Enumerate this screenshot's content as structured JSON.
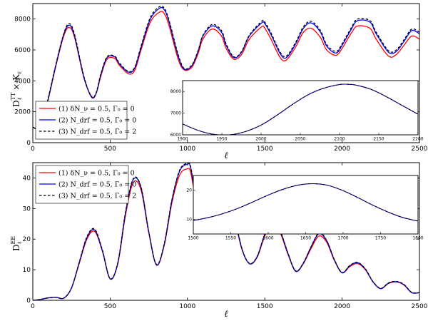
{
  "chart_data": [
    {
      "id": "top",
      "type": "line",
      "ylabel_main": "D",
      "ylabel_sub": "ℓ",
      "ylabel_sup": "TT",
      "ylabel_tail": "× K",
      "ylabel_tail_sub": "ℓ",
      "xlabel": "ℓ",
      "xlim": [
        0,
        2500
      ],
      "ylim": [
        0,
        9000
      ],
      "xticks": [
        "0",
        "500",
        "1000",
        "1500",
        "2000",
        "2500"
      ],
      "yticks": [
        "0",
        "2000",
        "4000",
        "6000",
        "8000"
      ],
      "legend_position": "lower-left",
      "series": [
        {
          "name": "(1) δN_ν = 0.5, Γ₀ = 0",
          "color": "#ff0000",
          "dash": false,
          "x": [
            2,
            30,
            60,
            100,
            150,
            200,
            235,
            270,
            330,
            380,
            410,
            440,
            480,
            530,
            560,
            620,
            660,
            700,
            760,
            820,
            850,
            880,
            940,
            980,
            1030,
            1070,
            1100,
            1160,
            1220,
            1250,
            1300,
            1350,
            1400,
            1480,
            1500,
            1540,
            1600,
            1640,
            1700,
            1750,
            1800,
            1860,
            1900,
            1960,
            2000,
            2060,
            2100,
            2180,
            2220,
            2300,
            2350,
            2400,
            2450,
            2500
          ],
          "y": [
            1000,
            900,
            1300,
            2800,
            5000,
            6900,
            7450,
            6800,
            4200,
            3000,
            3200,
            4300,
            5400,
            5450,
            5000,
            4450,
            4700,
            6000,
            7800,
            8450,
            8350,
            7600,
            5400,
            4700,
            4900,
            5800,
            6700,
            7350,
            6900,
            6100,
            5400,
            5700,
            6700,
            7500,
            7400,
            6700,
            5500,
            5350,
            6200,
            7150,
            7400,
            6800,
            6000,
            5650,
            6100,
            7100,
            7550,
            7400,
            6700,
            5600,
            5700,
            6300,
            6900,
            6700
          ]
        },
        {
          "name": "(2) N_drf = 0.5, Γ₀ = 0",
          "color": "#0000ff",
          "dash": false,
          "x": [
            2,
            30,
            60,
            100,
            150,
            200,
            235,
            270,
            330,
            380,
            410,
            440,
            480,
            530,
            560,
            620,
            660,
            700,
            760,
            820,
            850,
            880,
            940,
            980,
            1030,
            1070,
            1100,
            1160,
            1220,
            1250,
            1300,
            1350,
            1400,
            1480,
            1500,
            1540,
            1600,
            1640,
            1700,
            1750,
            1800,
            1860,
            1900,
            1960,
            2000,
            2060,
            2100,
            2180,
            2220,
            2300,
            2350,
            2400,
            2450,
            2500
          ],
          "y": [
            1000,
            900,
            1300,
            2850,
            5050,
            7000,
            7600,
            6900,
            4250,
            2950,
            3200,
            4400,
            5500,
            5550,
            5100,
            4550,
            4850,
            6150,
            8000,
            8700,
            8600,
            7850,
            5600,
            4750,
            5000,
            5950,
            6900,
            7550,
            7150,
            6300,
            5500,
            5850,
            6900,
            7750,
            7700,
            7000,
            5750,
            5500,
            6400,
            7400,
            7750,
            7150,
            6250,
            5800,
            6300,
            7350,
            7900,
            7800,
            7050,
            5850,
            5900,
            6550,
            7250,
            7050
          ]
        },
        {
          "name": "(3) N_drf = 0.5, Γ₀ = 2",
          "color": "#000000",
          "dash": true,
          "x": [
            2,
            30,
            60,
            100,
            150,
            200,
            235,
            270,
            330,
            380,
            410,
            440,
            480,
            530,
            560,
            620,
            660,
            700,
            760,
            820,
            850,
            880,
            940,
            980,
            1030,
            1070,
            1100,
            1160,
            1220,
            1250,
            1300,
            1350,
            1400,
            1480,
            1500,
            1540,
            1600,
            1640,
            1700,
            1750,
            1800,
            1860,
            1900,
            1960,
            2000,
            2060,
            2100,
            2180,
            2220,
            2300,
            2350,
            2400,
            2450,
            2500
          ],
          "y": [
            1000,
            900,
            1300,
            2900,
            5100,
            7050,
            7700,
            7000,
            4300,
            2950,
            3250,
            4450,
            5550,
            5600,
            5150,
            4600,
            4900,
            6250,
            8100,
            8800,
            8700,
            7950,
            5700,
            4800,
            5050,
            6000,
            6950,
            7650,
            7250,
            6400,
            5550,
            5900,
            6950,
            7850,
            7800,
            7100,
            5850,
            5600,
            6500,
            7500,
            7850,
            7250,
            6350,
            5900,
            6400,
            7450,
            8000,
            7900,
            7150,
            5950,
            6000,
            6650,
            7350,
            7150
          ]
        }
      ],
      "inset": {
        "xlim": [
          1900,
          2200
        ],
        "ylim": [
          6000,
          8500
        ],
        "xticks": [
          "1900",
          "1950",
          "2000",
          "2050",
          "2100",
          "2150",
          "2200"
        ],
        "yticks": [
          "6000",
          "7000",
          "8000"
        ],
        "series": [
          {
            "color": "#ff0000",
            "dash": false,
            "x": [
              1900,
              1920,
              1940,
              1960,
              1980,
              2000,
              2020,
              2040,
              2060,
              2080,
              2100,
              2110,
              2120,
              2140,
              2160,
              2180,
              2200
            ],
            "y": [
              6500,
              6200,
              6020,
              6000,
              6150,
              6450,
              6900,
              7400,
              7850,
              8150,
              8320,
              8330,
              8300,
              8100,
              7750,
              7350,
              6950
            ]
          },
          {
            "color": "#0000ff",
            "dash": false,
            "x": [
              1900,
              1920,
              1940,
              1960,
              1980,
              2000,
              2020,
              2040,
              2060,
              2080,
              2100,
              2110,
              2120,
              2140,
              2160,
              2180,
              2200
            ],
            "y": [
              6500,
              6200,
              6020,
              6000,
              6150,
              6450,
              6900,
              7400,
              7850,
              8150,
              8320,
              8330,
              8300,
              8100,
              7750,
              7350,
              6950
            ]
          },
          {
            "color": "#000000",
            "dash": true,
            "x": [
              1900,
              1920,
              1940,
              1960,
              1980,
              2000,
              2020,
              2040,
              2060,
              2080,
              2100,
              2110,
              2120,
              2140,
              2160,
              2180,
              2200
            ],
            "y": [
              6500,
              6200,
              6020,
              6000,
              6150,
              6450,
              6900,
              7400,
              7850,
              8150,
              8320,
              8330,
              8300,
              8100,
              7750,
              7350,
              6950
            ]
          }
        ]
      }
    },
    {
      "id": "bottom",
      "type": "line",
      "ylabel_main": "D",
      "ylabel_sub": "ℓ",
      "ylabel_sup": "EE",
      "xlabel": "ℓ",
      "xlim": [
        0,
        2500
      ],
      "ylim": [
        0,
        45
      ],
      "xticks": [
        "0",
        "500",
        "1000",
        "1500",
        "2000",
        "2500"
      ],
      "yticks": [
        "0",
        "10",
        "20",
        "30",
        "40"
      ],
      "legend_position": "upper-left",
      "series": [
        {
          "name": "(1) δN_ν = 0.5, Γ₀ = 0",
          "color": "#ff0000",
          "dash": false,
          "x": [
            2,
            50,
            100,
            150,
            200,
            250,
            300,
            350,
            400,
            450,
            500,
            550,
            600,
            650,
            700,
            750,
            800,
            850,
            900,
            950,
            1000,
            1020,
            1050,
            1100,
            1150,
            1200,
            1250,
            1300,
            1350,
            1400,
            1450,
            1500,
            1550,
            1600,
            1650,
            1700,
            1750,
            1800,
            1850,
            1900,
            1950,
            2000,
            2050,
            2100,
            2150,
            2200,
            2250,
            2300,
            2350,
            2400,
            2450,
            2500
          ],
          "y": [
            0,
            0.3,
            0.8,
            1.0,
            0.7,
            4,
            12,
            20,
            22.5,
            16,
            7,
            12,
            28,
            38.5,
            36,
            22,
            11.5,
            18,
            32,
            41,
            43,
            42,
            34,
            24,
            26,
            33,
            38,
            28,
            17,
            12,
            14,
            21,
            25,
            22,
            15,
            9.5,
            12,
            17,
            21,
            19,
            13,
            9,
            11,
            12,
            10,
            6,
            3.8,
            5.5,
            6,
            5,
            2.5,
            2.5
          ]
        },
        {
          "name": "(2) N_drf = 0.5, Γ₀ = 0",
          "color": "#0000ff",
          "dash": false,
          "x": [
            2,
            50,
            100,
            150,
            200,
            250,
            300,
            350,
            400,
            450,
            500,
            550,
            600,
            650,
            700,
            750,
            800,
            850,
            900,
            950,
            1000,
            1020,
            1050,
            1100,
            1150,
            1200,
            1250,
            1300,
            1350,
            1400,
            1450,
            1500,
            1550,
            1600,
            1650,
            1700,
            1750,
            1800,
            1850,
            1900,
            1950,
            2000,
            2050,
            2100,
            2150,
            2200,
            2250,
            2300,
            2350,
            2400,
            2450,
            2500
          ],
          "y": [
            0,
            0.3,
            0.8,
            1.0,
            0.7,
            4,
            12.3,
            20.5,
            23,
            16.2,
            7,
            12.3,
            28.7,
            39.5,
            36.8,
            22.3,
            11.6,
            18.3,
            32.8,
            42.3,
            44.5,
            43.5,
            35,
            24.5,
            26.5,
            33.8,
            39,
            28.5,
            17.2,
            12,
            14.2,
            21.5,
            25.6,
            22.5,
            15.3,
            9.5,
            12.2,
            17.5,
            21.8,
            19.5,
            13.2,
            9,
            11.3,
            12.3,
            10.2,
            6,
            3.8,
            5.6,
            6.1,
            5.1,
            2.5,
            2.5
          ]
        },
        {
          "name": "(3) N_drf = 0.5, Γ₀ = 2",
          "color": "#000000",
          "dash": true,
          "x": [
            2,
            50,
            100,
            150,
            200,
            250,
            300,
            350,
            400,
            450,
            500,
            550,
            600,
            650,
            700,
            750,
            800,
            850,
            900,
            950,
            1000,
            1020,
            1050,
            1100,
            1150,
            1200,
            1250,
            1300,
            1350,
            1400,
            1450,
            1500,
            1550,
            1600,
            1650,
            1700,
            1750,
            1800,
            1850,
            1900,
            1950,
            2000,
            2050,
            2100,
            2150,
            2200,
            2250,
            2300,
            2350,
            2400,
            2450,
            2500
          ],
          "y": [
            0,
            0.3,
            0.8,
            1.0,
            0.7,
            4,
            12.4,
            20.8,
            23.3,
            16.4,
            7.1,
            12.4,
            29,
            39.8,
            37,
            22.4,
            11.7,
            18.5,
            33,
            42.6,
            44.8,
            43.8,
            35.2,
            24.6,
            26.6,
            34,
            39.2,
            28.6,
            17.3,
            12.1,
            14.3,
            21.6,
            25.8,
            22.6,
            15.4,
            9.6,
            12.3,
            17.6,
            22,
            19.6,
            13.3,
            9.1,
            11.4,
            12.4,
            10.3,
            6.1,
            3.9,
            5.7,
            6.2,
            5.2,
            2.6,
            2.5
          ]
        }
      ],
      "inset": {
        "xlim": [
          1500,
          1800
        ],
        "ylim": [
          5,
          25
        ],
        "xticks": [
          "1500",
          "1550",
          "1600",
          "1650",
          "1700",
          "1750",
          "1800"
        ],
        "yticks": [
          "10",
          "20"
        ],
        "series": [
          {
            "color": "#ff0000",
            "dash": false,
            "x": [
              1500,
              1520,
              1540,
              1560,
              1580,
              1600,
              1620,
              1640,
              1660,
              1680,
              1700,
              1720,
              1740,
              1760,
              1780,
              1800
            ],
            "y": [
              9.6,
              10.6,
              12,
              13.8,
              16,
              18.3,
              20.3,
              21.7,
              22.2,
              21.6,
              19.8,
              17.4,
              14.8,
              12.5,
              10.6,
              9.4
            ]
          },
          {
            "color": "#0000ff",
            "dash": false,
            "x": [
              1500,
              1520,
              1540,
              1560,
              1580,
              1600,
              1620,
              1640,
              1660,
              1680,
              1700,
              1720,
              1740,
              1760,
              1780,
              1800
            ],
            "y": [
              9.6,
              10.6,
              12,
              13.8,
              16,
              18.3,
              20.3,
              21.7,
              22.2,
              21.6,
              19.8,
              17.4,
              14.8,
              12.5,
              10.6,
              9.4
            ]
          },
          {
            "color": "#000000",
            "dash": true,
            "x": [
              1500,
              1520,
              1540,
              1560,
              1580,
              1600,
              1620,
              1640,
              1660,
              1680,
              1700,
              1720,
              1740,
              1760,
              1780,
              1800
            ],
            "y": [
              9.6,
              10.6,
              12,
              13.8,
              16,
              18.3,
              20.3,
              21.7,
              22.2,
              21.6,
              19.8,
              17.4,
              14.8,
              12.5,
              10.6,
              9.4
            ]
          }
        ]
      }
    }
  ]
}
